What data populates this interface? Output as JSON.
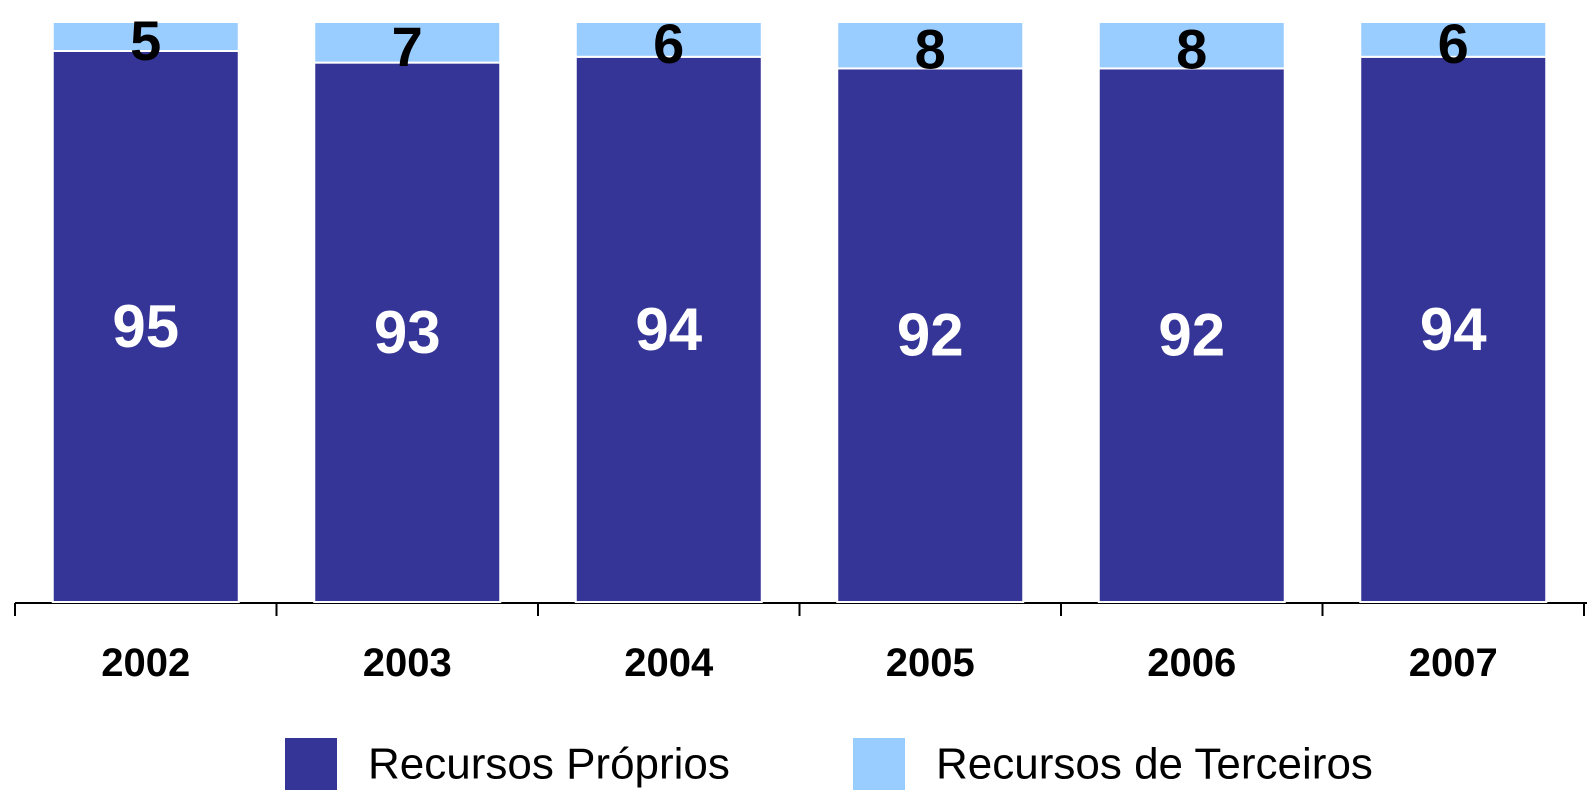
{
  "chart_data": {
    "type": "stacked_bar",
    "categories": [
      "2002",
      "2003",
      "2004",
      "2005",
      "2006",
      "2007"
    ],
    "series": [
      {
        "name": "Recursos Próprios",
        "color": "#353597",
        "values": [
          95,
          93,
          94,
          92,
          92,
          94
        ]
      },
      {
        "name": "Recursos de Terceiros",
        "color": "#99ccff",
        "values": [
          5,
          7,
          6,
          8,
          8,
          6
        ]
      }
    ],
    "ylim": [
      0,
      100
    ]
  }
}
